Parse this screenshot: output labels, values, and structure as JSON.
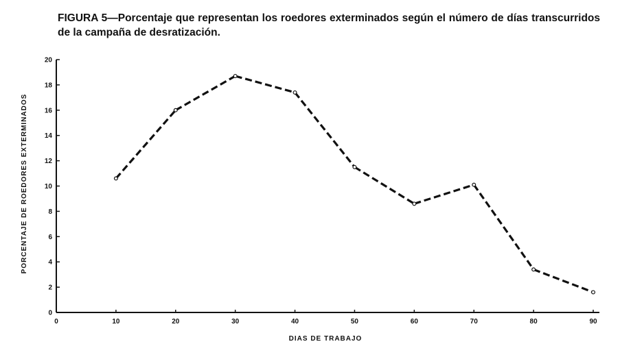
{
  "caption": "FIGURA 5—Porcentaje que representan los roedores exterminados según el número de días transcurridos de la campaña de desratización.",
  "chart_data": {
    "type": "line",
    "xlabel": "DIAS DE TRABAJO",
    "ylabel": "PORCENTAJE DE ROEDORES EXTERMINADOS",
    "xlim": [
      0,
      95
    ],
    "ylim": [
      0,
      20
    ],
    "x_ticks": [
      0,
      10,
      20,
      30,
      40,
      50,
      60,
      70,
      80,
      90
    ],
    "y_ticks": [
      0,
      2,
      4,
      6,
      8,
      10,
      12,
      14,
      16,
      18,
      20
    ],
    "grid": false,
    "line_style": "dashed",
    "line_color": "#111111",
    "series": [
      {
        "x": [
          10,
          20,
          30,
          40,
          50,
          60,
          70,
          80,
          90
        ],
        "y": [
          10.6,
          16.0,
          18.7,
          17.4,
          11.5,
          8.6,
          10.1,
          3.4,
          1.6
        ]
      }
    ]
  }
}
